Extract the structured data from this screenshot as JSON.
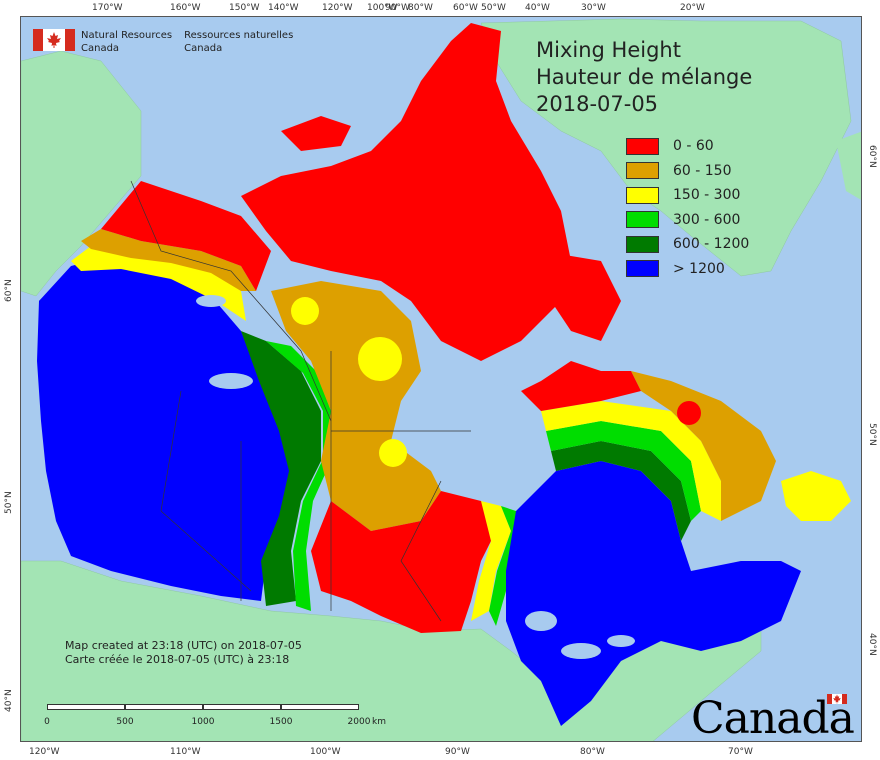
{
  "map": {
    "title_en": "Mixing Height",
    "title_fr": "Hauteur de mélange",
    "date": "2018-07-05",
    "colors": {
      "ocean": "#a8cbef",
      "land_outside": "#a3e4b4",
      "lake": "#a8cbef"
    }
  },
  "agency": {
    "en_line1": "Natural Resources",
    "en_line2": "Canada",
    "fr_line1": "Ressources naturelles",
    "fr_line2": "Canada"
  },
  "legend": [
    {
      "label": "0 - 60",
      "color": "#ff0000"
    },
    {
      "label": "60 - 150",
      "color": "#dda000"
    },
    {
      "label": "150 - 300",
      "color": "#ffff00"
    },
    {
      "label": "300 - 600",
      "color": "#00dd00"
    },
    {
      "label": "600 - 1200",
      "color": "#007a00"
    },
    {
      "label": "> 1200",
      "color": "#0000ff"
    }
  ],
  "credits": {
    "en": "Map created at 23:18 (UTC) on 2018-07-05",
    "fr": "Carte créée le 2018-07-05 (UTC) à 23:18"
  },
  "scalebar": {
    "ticks": [
      "0",
      "500",
      "1000",
      "1500",
      "2000"
    ],
    "unit": "km"
  },
  "wordmark": "Canada",
  "graticule": {
    "top": [
      "170°W",
      "160°W",
      "150°W",
      "140°W",
      "120°W",
      "100°W",
      "90°W",
      "80°W",
      "60°W",
      "50°W",
      "40°W",
      "30°W",
      "20°W"
    ],
    "bottom": [
      "120°W",
      "110°W",
      "100°W",
      "90°W",
      "80°W",
      "70°W"
    ],
    "left": [
      "60°N",
      "50°N",
      "40°N"
    ],
    "right": [
      "60°N",
      "50°N",
      "40°N"
    ]
  }
}
